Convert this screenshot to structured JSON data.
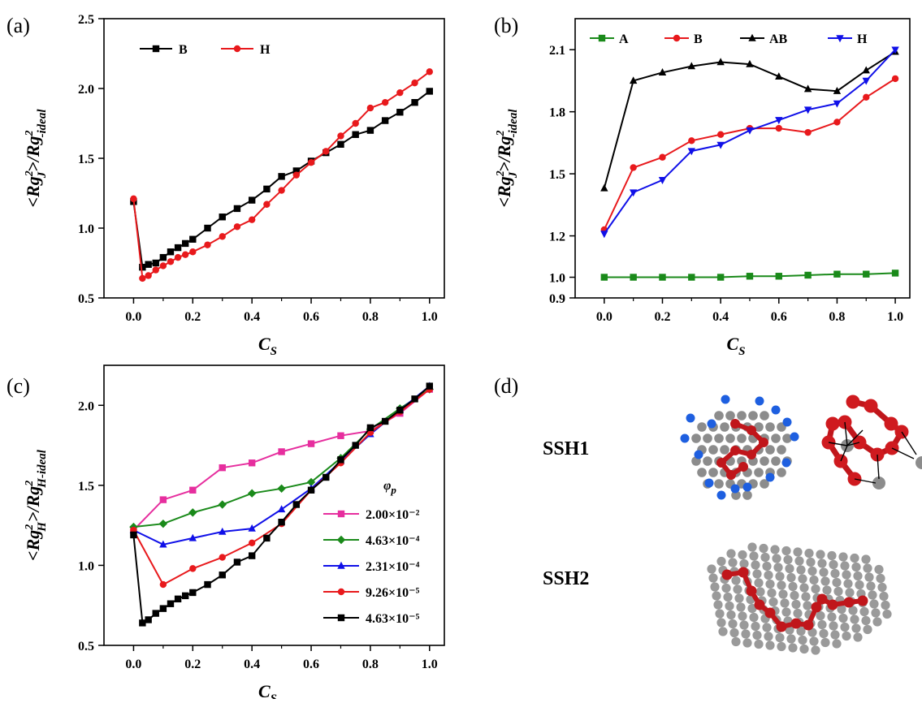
{
  "panels": {
    "a": {
      "label": "(a)"
    },
    "b": {
      "label": "(b)"
    },
    "c": {
      "label": "(c)"
    },
    "d": {
      "label": "(d)",
      "structures": [
        "SSH1",
        "SSH2"
      ]
    }
  },
  "chart_data": [
    {
      "id": "a",
      "type": "line",
      "xlabel_base": "C",
      "xlabel_sub": "S",
      "ylabel": "<Rg_J^2>/Rg^2_-ideal",
      "xlim": [
        -0.1,
        1.05
      ],
      "ylim": [
        0.5,
        2.5
      ],
      "xticks": [
        0.0,
        0.2,
        0.4,
        0.6,
        0.8,
        1.0
      ],
      "xtick_labels": [
        "0.0",
        "0.2",
        "0.4",
        "0.6",
        "0.8",
        "1.0"
      ],
      "yticks": [
        0.5,
        1.0,
        1.5,
        2.0,
        2.5
      ],
      "ytick_labels": [
        "0.5",
        "1.0",
        "1.5",
        "2.0",
        "2.5"
      ],
      "grid": false,
      "legend_position": "top-left",
      "legend_columns": 1,
      "series": [
        {
          "name": "B",
          "color": "#000000",
          "marker": "square",
          "x": [
            0.0,
            0.03,
            0.05,
            0.075,
            0.1,
            0.125,
            0.15,
            0.175,
            0.2,
            0.25,
            0.3,
            0.35,
            0.4,
            0.45,
            0.5,
            0.55,
            0.6,
            0.65,
            0.7,
            0.75,
            0.8,
            0.85,
            0.9,
            0.95,
            1.0
          ],
          "y": [
            1.19,
            0.72,
            0.74,
            0.75,
            0.79,
            0.83,
            0.86,
            0.89,
            0.92,
            1.0,
            1.08,
            1.14,
            1.2,
            1.28,
            1.37,
            1.41,
            1.48,
            1.54,
            1.6,
            1.67,
            1.7,
            1.77,
            1.83,
            1.9,
            1.98
          ]
        },
        {
          "name": "H",
          "color": "#e8191c",
          "marker": "circle",
          "x": [
            0.0,
            0.03,
            0.05,
            0.075,
            0.1,
            0.125,
            0.15,
            0.175,
            0.2,
            0.25,
            0.3,
            0.35,
            0.4,
            0.45,
            0.5,
            0.55,
            0.6,
            0.65,
            0.7,
            0.75,
            0.8,
            0.85,
            0.9,
            0.95,
            1.0
          ],
          "y": [
            1.21,
            0.64,
            0.66,
            0.7,
            0.73,
            0.76,
            0.79,
            0.81,
            0.83,
            0.88,
            0.94,
            1.01,
            1.06,
            1.17,
            1.27,
            1.38,
            1.47,
            1.55,
            1.66,
            1.75,
            1.86,
            1.9,
            1.97,
            2.04,
            2.12
          ]
        }
      ]
    },
    {
      "id": "b",
      "type": "line",
      "xlabel_base": "C",
      "xlabel_sub": "S",
      "ylabel": "<Rg_J^2>/Rg^2_-ideal",
      "xlim": [
        -0.1,
        1.05
      ],
      "ylim": [
        0.9,
        2.25
      ],
      "xticks": [
        0.0,
        0.2,
        0.4,
        0.6,
        0.8,
        1.0
      ],
      "xtick_labels": [
        "0.0",
        "0.2",
        "0.4",
        "0.6",
        "0.8",
        "1.0"
      ],
      "yticks": [
        0.9,
        1.0,
        1.2,
        1.5,
        1.8,
        2.1
      ],
      "ytick_labels": [
        "0.9",
        "1.0",
        "1.2",
        "1.5",
        "1.8",
        "2.1"
      ],
      "grid": false,
      "legend_position": "top",
      "legend_columns": 4,
      "series": [
        {
          "name": "A",
          "color": "#1a8a1a",
          "marker": "square",
          "x": [
            0.0,
            0.1,
            0.2,
            0.3,
            0.4,
            0.5,
            0.6,
            0.7,
            0.8,
            0.9,
            1.0
          ],
          "y": [
            1.0,
            1.0,
            1.0,
            1.0,
            1.0,
            1.005,
            1.005,
            1.01,
            1.015,
            1.015,
            1.02
          ]
        },
        {
          "name": "B",
          "color": "#e8191c",
          "marker": "circle",
          "x": [
            0.0,
            0.1,
            0.2,
            0.3,
            0.4,
            0.5,
            0.6,
            0.7,
            0.8,
            0.9,
            1.0
          ],
          "y": [
            1.23,
            1.53,
            1.58,
            1.66,
            1.69,
            1.72,
            1.72,
            1.7,
            1.75,
            1.87,
            1.96
          ]
        },
        {
          "name": "AB",
          "color": "#000000",
          "marker": "triangle-up",
          "x": [
            0.0,
            0.1,
            0.2,
            0.3,
            0.4,
            0.5,
            0.6,
            0.7,
            0.8,
            0.9,
            1.0
          ],
          "y": [
            1.43,
            1.95,
            1.99,
            2.02,
            2.04,
            2.03,
            1.97,
            1.91,
            1.9,
            2.0,
            2.09
          ]
        },
        {
          "name": "H",
          "color": "#1010e8",
          "marker": "triangle-down",
          "x": [
            0.0,
            0.1,
            0.2,
            0.3,
            0.4,
            0.5,
            0.6,
            0.7,
            0.8,
            0.9,
            1.0
          ],
          "y": [
            1.21,
            1.41,
            1.47,
            1.61,
            1.64,
            1.71,
            1.76,
            1.81,
            1.84,
            1.95,
            2.1
          ]
        }
      ]
    },
    {
      "id": "c",
      "type": "line",
      "xlabel_base": "C",
      "xlabel_sub": "S",
      "ylabel": "<Rg_H^2>/Rg^2_H-ideal",
      "xlim": [
        -0.1,
        1.05
      ],
      "ylim": [
        0.5,
        2.25
      ],
      "xticks": [
        0.0,
        0.2,
        0.4,
        0.6,
        0.8,
        1.0
      ],
      "xtick_labels": [
        "0.0",
        "0.2",
        "0.4",
        "0.6",
        "0.8",
        "1.0"
      ],
      "yticks": [
        0.5,
        1.0,
        1.5,
        2.0
      ],
      "ytick_labels": [
        "0.5",
        "1.0",
        "1.5",
        "2.0"
      ],
      "grid": false,
      "legend_title": "φp",
      "legend_position": "right",
      "legend_columns": 1,
      "series": [
        {
          "name": "2.00×10⁻²",
          "color": "#e62e9e",
          "marker": "square",
          "x": [
            0.0,
            0.1,
            0.2,
            0.3,
            0.4,
            0.5,
            0.6,
            0.7,
            0.8,
            0.9,
            1.0
          ],
          "y": [
            1.22,
            1.41,
            1.47,
            1.61,
            1.64,
            1.71,
            1.76,
            1.81,
            1.84,
            1.95,
            2.1
          ]
        },
        {
          "name": "4.63×10⁻⁴",
          "color": "#1a8a1a",
          "marker": "diamond",
          "x": [
            0.0,
            0.1,
            0.2,
            0.3,
            0.4,
            0.5,
            0.6,
            0.7,
            0.8,
            0.9,
            1.0
          ],
          "y": [
            1.24,
            1.26,
            1.33,
            1.38,
            1.45,
            1.48,
            1.52,
            1.67,
            1.85,
            1.98,
            2.1
          ]
        },
        {
          "name": "2.31×10⁻⁴",
          "color": "#1010e8",
          "marker": "triangle-up",
          "x": [
            0.0,
            0.1,
            0.2,
            0.3,
            0.4,
            0.5,
            0.6,
            0.7,
            0.8,
            0.9,
            1.0
          ],
          "y": [
            1.22,
            1.13,
            1.17,
            1.21,
            1.23,
            1.35,
            1.48,
            1.65,
            1.82,
            1.97,
            2.12
          ]
        },
        {
          "name": "9.26×10⁻⁵",
          "color": "#e8191c",
          "marker": "circle",
          "x": [
            0.0,
            0.1,
            0.2,
            0.3,
            0.4,
            0.5,
            0.6,
            0.7,
            0.8,
            0.9,
            1.0
          ],
          "y": [
            1.22,
            0.88,
            0.98,
            1.05,
            1.14,
            1.26,
            1.47,
            1.64,
            1.83,
            1.96,
            2.1
          ]
        },
        {
          "name": "4.63×10⁻⁵",
          "color": "#000000",
          "marker": "square",
          "x": [
            0.0,
            0.03,
            0.05,
            0.075,
            0.1,
            0.125,
            0.15,
            0.175,
            0.2,
            0.25,
            0.3,
            0.35,
            0.4,
            0.45,
            0.5,
            0.55,
            0.6,
            0.65,
            0.7,
            0.75,
            0.8,
            0.85,
            0.9,
            0.95,
            1.0
          ],
          "y": [
            1.19,
            0.64,
            0.66,
            0.7,
            0.73,
            0.76,
            0.79,
            0.81,
            0.83,
            0.88,
            0.94,
            1.02,
            1.06,
            1.17,
            1.27,
            1.38,
            1.47,
            1.55,
            1.66,
            1.75,
            1.86,
            1.9,
            1.97,
            2.04,
            2.12
          ]
        }
      ]
    }
  ]
}
